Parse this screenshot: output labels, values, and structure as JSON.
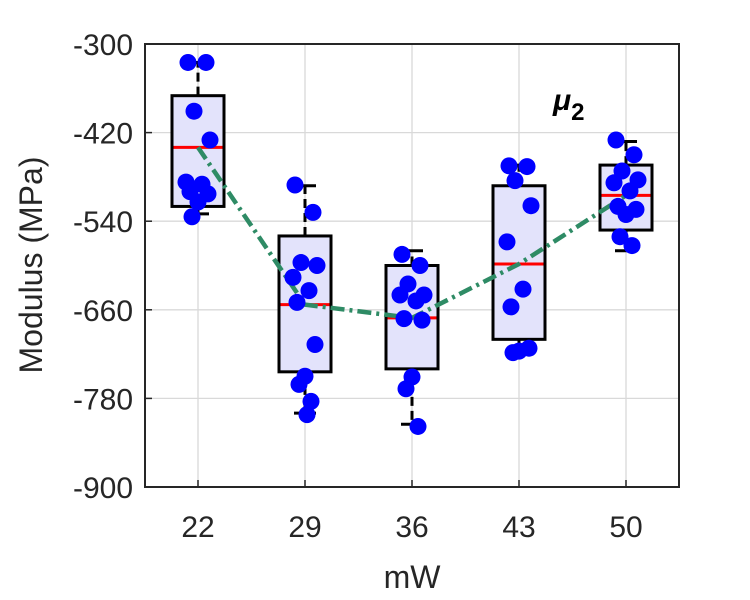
{
  "chart_data": {
    "type": "box",
    "title": "",
    "xlabel": "mW",
    "ylabel": "Modulus (MPa)",
    "categories": [
      "22",
      "29",
      "36",
      "43",
      "50"
    ],
    "ylim": [
      -900,
      -300
    ],
    "yticks": [
      -300,
      -420,
      -540,
      -660,
      -780,
      -900
    ],
    "yticklabels": [
      "-300",
      "-420",
      "-540",
      "-660",
      "-780",
      "-900"
    ],
    "grid": true,
    "annotation": {
      "symbol": "μ",
      "subscript": "2"
    },
    "boxes": [
      {
        "category": "22",
        "q1": -520,
        "median": -440,
        "q3": -370,
        "whisker_low": -530,
        "whisker_high": -325
      },
      {
        "category": "29",
        "q1": -744,
        "median": -653,
        "q3": -560,
        "whisker_low": -800,
        "whisker_high": -492
      },
      {
        "category": "36",
        "q1": -740,
        "median": -671,
        "q3": -600,
        "whisker_low": -815,
        "whisker_high": -580
      },
      {
        "category": "43",
        "q1": -700,
        "median": -598,
        "q3": -492,
        "whisker_low": -716,
        "whisker_high": -464
      },
      {
        "category": "50",
        "q1": -552,
        "median": -505,
        "q3": -464,
        "whisker_low": -580,
        "whisker_high": -432
      }
    ],
    "points": [
      {
        "category": "22",
        "values": [
          -325,
          -325,
          -391,
          -430,
          -487,
          -490,
          -500,
          -503,
          -514,
          -534
        ]
      },
      {
        "category": "29",
        "values": [
          -491,
          -528,
          -596,
          -600,
          -616,
          -634,
          -650,
          -707,
          -750,
          -761,
          -784,
          -802
        ]
      },
      {
        "category": "36",
        "values": [
          -585,
          -600,
          -625,
          -640,
          -640,
          -648,
          -672,
          -674,
          -751,
          -767,
          -818
        ]
      },
      {
        "category": "43",
        "values": [
          -465,
          -466,
          -485,
          -519,
          -568,
          -632,
          -656,
          -712,
          -716,
          -718
        ]
      },
      {
        "category": "50",
        "values": [
          -430,
          -450,
          -472,
          -484,
          -488,
          -499,
          -520,
          -524,
          -531,
          -561,
          -573
        ]
      }
    ],
    "mean_line": {
      "style": "dash-dot",
      "color": "#2e8b65",
      "values": [
        -440,
        -653,
        -671,
        -598,
        -505
      ]
    },
    "colors": {
      "box_fill": "#e3e3fb",
      "box_edge": "#000000",
      "median": "#ff0000",
      "points": "#0000ff",
      "trend": "#2e8b65",
      "grid": "#d9d9d9",
      "text": "#262626"
    }
  }
}
